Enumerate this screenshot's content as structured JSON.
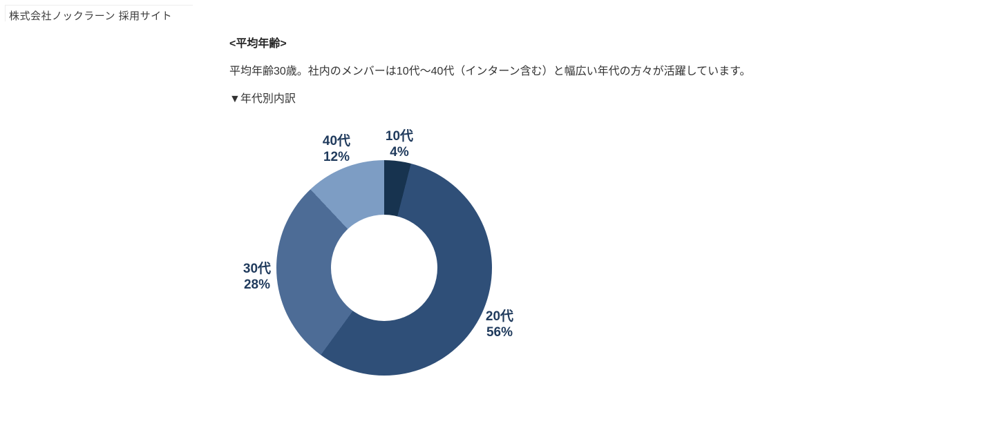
{
  "page": {
    "site_header": "株式会社ノックラーン 採用サイト"
  },
  "section": {
    "heading": "<平均年齢>",
    "description": "平均年齢30歳。社内のメンバーは10代～40代（インターン含む）と幅広い年代の方々が活躍しています。",
    "breakdown_marker": "▼年代別内訳"
  },
  "chart_data": {
    "type": "pie",
    "subtype": "donut",
    "title": "年代別内訳",
    "categories": [
      "10代",
      "20代",
      "30代",
      "40代"
    ],
    "values": [
      4,
      56,
      28,
      12
    ],
    "unit": "%",
    "colors": [
      "#17334f",
      "#2f4f78",
      "#4d6c96",
      "#7d9dc4"
    ],
    "start_angle_deg": 0,
    "direction": "clockwise",
    "inner_radius_ratio": 0.49,
    "label_color": "#1f3a5c",
    "legend_position": "none",
    "labels": [
      {
        "name": "10代",
        "value": "4%"
      },
      {
        "name": "20代",
        "value": "56%"
      },
      {
        "name": "30代",
        "value": "28%"
      },
      {
        "name": "40代",
        "value": "12%"
      }
    ]
  }
}
